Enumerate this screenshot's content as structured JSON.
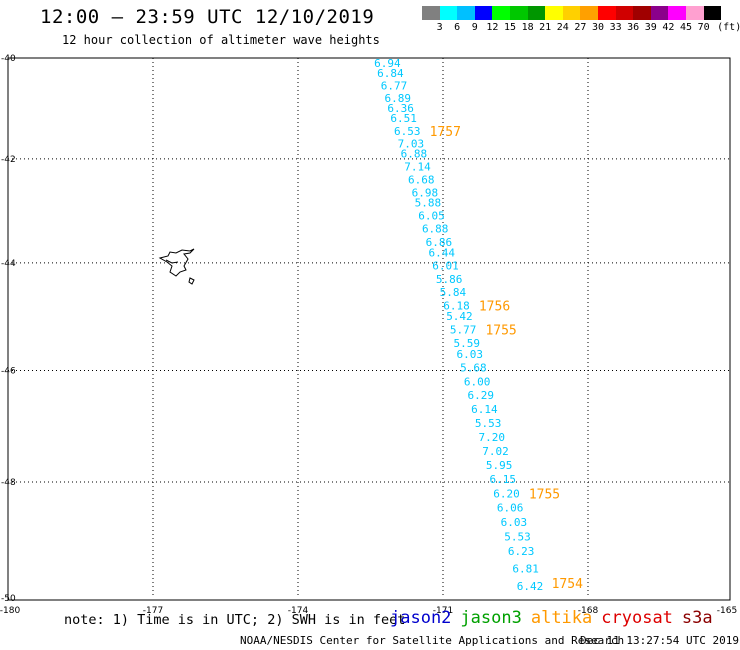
{
  "header": {
    "title": "12:00 — 23:59 UTC 12/10/2019",
    "subtitle": "12 hour collection of altimeter wave heights"
  },
  "legend": {
    "colors": [
      "#808080",
      "#00ffff",
      "#00c0ff",
      "#0000ff",
      "#00ff00",
      "#00c800",
      "#009600",
      "#ffff00",
      "#ffd000",
      "#ffa000",
      "#ff0000",
      "#d00000",
      "#a00000",
      "#8b008b",
      "#ff00ff",
      "#ffa0d0",
      "#000000"
    ],
    "labels": [
      "3",
      "6",
      "9",
      "12",
      "15",
      "18",
      "21",
      "24",
      "27",
      "30",
      "33",
      "36",
      "39",
      "42",
      "45",
      "70",
      "(ft)"
    ]
  },
  "map": {
    "x_ticks": [
      "-180",
      "-177",
      "-174",
      "-171",
      "-168",
      "-165"
    ],
    "y_ticks": [
      "-40",
      "-42",
      "-44",
      "-46",
      "-48",
      "-50"
    ],
    "track_color": "#00c8ff",
    "time_color": "#ff9900",
    "track": [
      [
        "6.94",
        -40.1
      ],
      [
        "6.84",
        -40.3
      ],
      [
        "6.77",
        -40.55
      ],
      [
        "6.89",
        -40.8
      ],
      [
        "6.36",
        -41.0
      ],
      [
        "6.51",
        -41.2
      ],
      [
        "6.53",
        -41.45
      ],
      [
        "7.03",
        -41.7
      ],
      [
        "6.88",
        -41.9
      ],
      [
        "7.14",
        -42.15
      ],
      [
        "6.68",
        -42.4
      ],
      [
        "6.98",
        -42.65
      ],
      [
        "5.88",
        -42.85
      ],
      [
        "6.05",
        -43.1
      ],
      [
        "6.88",
        -43.35
      ],
      [
        "6.86",
        -43.6
      ],
      [
        "6.44",
        -43.8
      ],
      [
        "6.01",
        -44.05
      ],
      [
        "5.86",
        -44.3
      ],
      [
        "5.84",
        -44.55
      ],
      [
        "6.18",
        -44.8
      ],
      [
        "5.42",
        -45.0
      ],
      [
        "5.77",
        -45.25
      ],
      [
        "5.59",
        -45.5
      ],
      [
        "6.03",
        -45.7
      ],
      [
        "5.68",
        -45.95
      ],
      [
        "6.00",
        -46.2
      ],
      [
        "6.29",
        -46.45
      ],
      [
        "6.14",
        -46.7
      ],
      [
        "5.53",
        -46.95
      ],
      [
        "7.20",
        -47.2
      ],
      [
        "7.02",
        -47.45
      ],
      [
        "5.95",
        -47.7
      ],
      [
        "6.15",
        -47.95
      ],
      [
        "6.20",
        -48.2
      ],
      [
        "6.06",
        -48.45
      ],
      [
        "6.03",
        -48.7
      ],
      [
        "5.53",
        -48.95
      ],
      [
        "6.23",
        -49.2
      ],
      [
        "6.81",
        -49.5
      ],
      [
        "6.42",
        -49.8
      ]
    ],
    "times": [
      [
        "1757",
        -41.45
      ],
      [
        "1756",
        -44.8
      ],
      [
        "1755",
        -45.25
      ],
      [
        "1755",
        -48.2
      ],
      [
        "1754",
        -49.75
      ]
    ]
  },
  "note": "note: 1) Time is in UTC; 2) SWH is in feet",
  "satellites": [
    {
      "name": "jason2",
      "color": "#0000cc"
    },
    {
      "name": "jason3",
      "color": "#00a000"
    },
    {
      "name": "altika",
      "color": "#ff9900"
    },
    {
      "name": "cryosat",
      "color": "#dd0000"
    },
    {
      "name": "s3a",
      "color": "#8b0000"
    }
  ],
  "footer": {
    "credit": "NOAA/NESDIS Center for Satellite Applications and Research",
    "timestamp": "Dec 11 13:27:54 UTC 2019"
  }
}
